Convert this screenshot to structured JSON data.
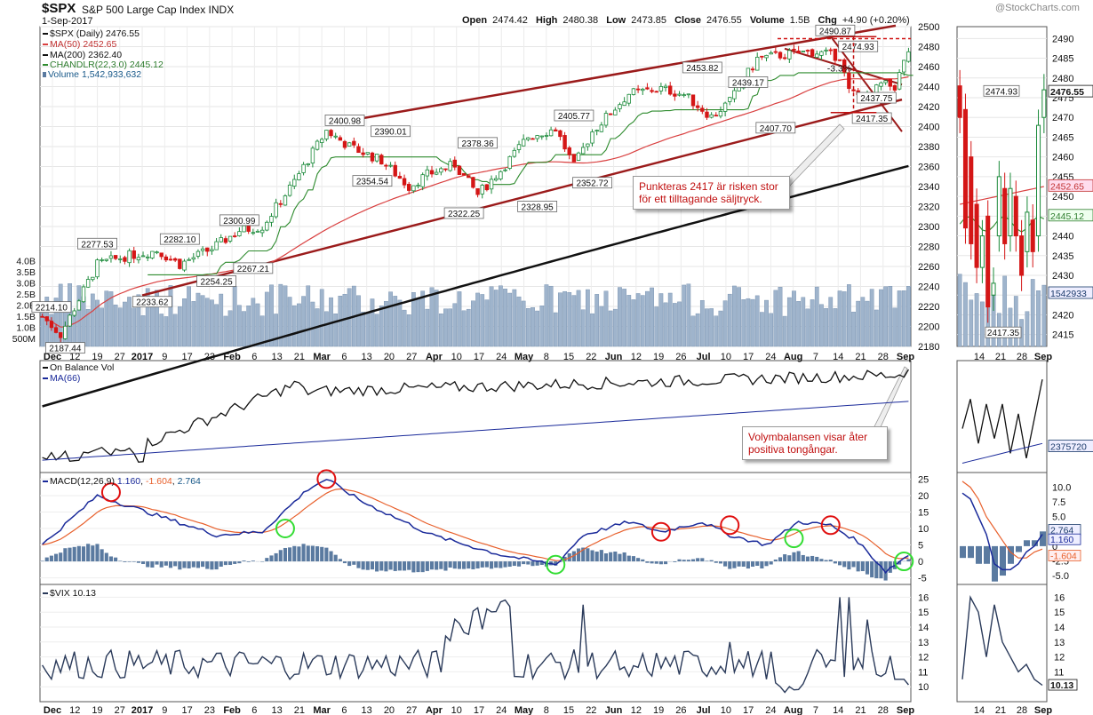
{
  "header": {
    "symbol": "$SPX",
    "name": "S&P 500 Large Cap Index INDX",
    "date": "1-Sep-2017",
    "brand": "@StockCharts.com",
    "ohlc": {
      "open_label": "Open",
      "open": "2474.42",
      "high_label": "High",
      "high": "2480.38",
      "low_label": "Low",
      "low": "2473.85",
      "close_label": "Close",
      "close": "2476.55",
      "volume_label": "Volume",
      "volume": "1.5B",
      "chg_label": "Chg",
      "chg": "+4.90 (+0.20%)"
    }
  },
  "legend": {
    "price": "$SPX (Daily) 2476.55",
    "ma50": "MA(50) 2452.65",
    "ma200": "MA(200) 2362.40",
    "chandlr": "CHANDLR(22,3.0) 2445.12",
    "volume": "Volume 1,542,933,632",
    "obv": "On Balance Vol",
    "obv_ma": "MA(66)",
    "macd_title": "MACD(12,26,9)",
    "macd_v1": "1.160",
    "macd_v2": "-1.604",
    "macd_v3": "2.764",
    "vix": "$VIX 10.13"
  },
  "annotations": {
    "note1": "Punkteras 2417 är risken stor för ett tilltagande säljtryck.",
    "note2": "Volymbalansen visar åter positiva tongångar.",
    "pct": "-3.3%"
  },
  "colors": {
    "up": "#1b8a3a",
    "down": "#d41616",
    "ma50": "#d94040",
    "ma200": "#111111",
    "chandlr": "#2e8b2e",
    "channel": "#9b1b1b",
    "volume": "#9fb4cc",
    "macd": "#1a2a9a",
    "signal": "#e8602c",
    "hist": "#5a7aa0",
    "vix": "#2a3a5a",
    "circle_red": "#e01010",
    "circle_green": "#33dd33"
  },
  "chart_data": [
    {
      "type": "candlestick",
      "ylim": [
        2180,
        2500
      ],
      "y_ticks": [
        "2180",
        "2200",
        "2220",
        "2240",
        "2260",
        "2280",
        "2300",
        "2320",
        "2340",
        "2360",
        "2380",
        "2400",
        "2420",
        "2440",
        "2460",
        "2480",
        "2500"
      ],
      "x_ticks": [
        "Dec",
        "12",
        "19",
        "27",
        "2017",
        "9",
        "17",
        "23",
        "Feb",
        "6",
        "13",
        "21",
        "Mar",
        "6",
        "13",
        "20",
        "27",
        "Apr",
        "10",
        "17",
        "24",
        "May",
        "8",
        "15",
        "22",
        "Jun",
        "12",
        "19",
        "26",
        "Jul",
        "10",
        "17",
        "24",
        "Aug",
        "7",
        "14",
        "21",
        "28",
        "Sep"
      ],
      "price_labels": [
        {
          "text": "2214.10",
          "v": 2214.1
        },
        {
          "text": "2187.44",
          "v": 2187.44
        },
        {
          "text": "2277.53",
          "v": 2277.53
        },
        {
          "text": "2233.62",
          "v": 2233.62
        },
        {
          "text": "2282.10",
          "v": 2282.1
        },
        {
          "text": "2254.25",
          "v": 2254.25
        },
        {
          "text": "2300.99",
          "v": 2300.99
        },
        {
          "text": "2267.21",
          "v": 2267.21
        },
        {
          "text": "2400.98",
          "v": 2400.98
        },
        {
          "text": "2390.01",
          "v": 2390.01
        },
        {
          "text": "2354.54",
          "v": 2354.54
        },
        {
          "text": "2322.25",
          "v": 2322.25
        },
        {
          "text": "2378.36",
          "v": 2378.36
        },
        {
          "text": "2328.95",
          "v": 2328.95
        },
        {
          "text": "2405.77",
          "v": 2405.77
        },
        {
          "text": "2352.72",
          "v": 2352.72
        },
        {
          "text": "2453.82",
          "v": 2453.82
        },
        {
          "text": "2439.17",
          "v": 2439.17
        },
        {
          "text": "2407.70",
          "v": 2407.7
        },
        {
          "text": "2490.87",
          "v": 2490.87
        },
        {
          "text": "2474.93",
          "v": 2474.93
        },
        {
          "text": "2437.75",
          "v": 2437.75
        },
        {
          "text": "2417.35",
          "v": 2417.35
        }
      ],
      "volume_ticks": [
        "500M",
        "1.0B",
        "1.5B",
        "2.0B",
        "2.5B",
        "3.0B",
        "3.5B",
        "4.0B"
      ],
      "last_value_tags": [
        "2476.55",
        "2452.65",
        "2445.12",
        "1542933"
      ]
    },
    {
      "type": "candlestick-zoom",
      "ylim": [
        2412,
        2493
      ],
      "y_ticks": [
        "2415",
        "2420",
        "2425",
        "2430",
        "2435",
        "2440",
        "2445",
        "2450",
        "2455",
        "2460",
        "2465",
        "2470",
        "2475",
        "2480",
        "2485",
        "2490"
      ],
      "x_ticks": [
        "14",
        "21",
        "28",
        "Sep"
      ],
      "price_labels": [
        {
          "text": "2474.93",
          "v": 2474.93
        },
        {
          "text": "2417.35",
          "v": 2417.35
        }
      ]
    },
    {
      "type": "line",
      "name": "On Balance Vol",
      "last_value_tag": "2375720"
    },
    {
      "type": "line+histogram",
      "name": "MACD(12,26,9)",
      "ylim": [
        -7,
        27
      ],
      "y_ticks": [
        "25",
        "20",
        "15",
        "10",
        "5",
        "0",
        "-5"
      ],
      "zoom_y_ticks": [
        "10.0",
        "7.5",
        "5.0",
        "2.5",
        "0",
        "-2.5",
        "-5.0"
      ],
      "last_value_tags": [
        "2.764",
        "1.160",
        "-1.604"
      ]
    },
    {
      "type": "line",
      "name": "$VIX",
      "ylim": [
        9,
        16.5
      ],
      "y_ticks": [
        "10",
        "11",
        "12",
        "13",
        "14",
        "15",
        "16"
      ],
      "last_value_tag": "10.13"
    }
  ]
}
